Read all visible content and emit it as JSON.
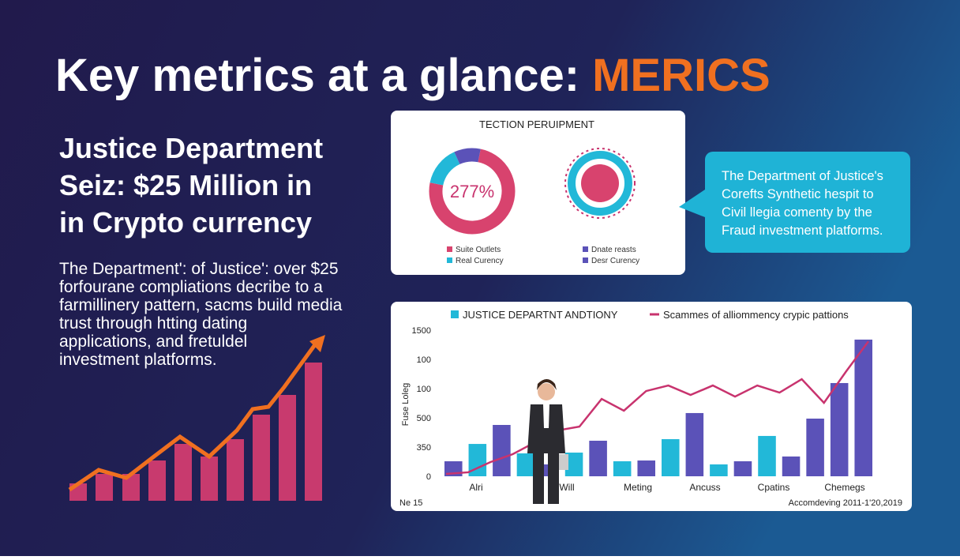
{
  "header": {
    "title": "Key metrics at a glance:",
    "title_accent": "MERICS"
  },
  "headline": {
    "lines": [
      "Justice Department",
      "Seiz: $25 Million in",
      "in Crypto currency"
    ]
  },
  "body": {
    "lines": [
      "The Department': of Justice': over $25",
      "forfourane compliations decribe to a",
      "farmillinery pattern, sacms build media",
      "trust through htting dating",
      "applications, and fretuldel",
      "investment platforms."
    ]
  },
  "callout": {
    "lines": [
      "The Department of Justice's",
      "Corefts Synthetic hespit to",
      "Civil llegia comenty by the",
      "Fraud investment platforms."
    ]
  },
  "chart_data": [
    {
      "type": "pie",
      "title": "TECTION PERUIPMENT",
      "center_label": "277%",
      "categories": [
        "Suite Outlets",
        "Real Curency",
        "Dnate reasts",
        "Desr Curency"
      ],
      "values": [
        75,
        15,
        10,
        null
      ],
      "colors": [
        "#d8436e",
        "#22b8d8",
        "#5b52b8",
        "#5b52b8"
      ]
    },
    {
      "type": "bar",
      "ylim": [
        0,
        1500
      ],
      "y_axis_title": "Fuse Loleg",
      "y_labels": [
        "1500",
        "100",
        "100",
        "500",
        "350",
        "0"
      ],
      "x_labels": [
        "Alri",
        "Will",
        "Meting",
        "Ancuss",
        "Cpatins",
        "Chemegs"
      ],
      "footnote_left": "Ne 15",
      "footnote_right": "Accomdeving 2011-1'20,2019",
      "series": [
        {
          "name": "JUSTICE DEPARTNT ANDTIONY",
          "color": "#22b8d8",
          "alt_color": "#5b52b8",
          "values": [
            154,
            332,
            527,
            235,
            122,
            243,
            365,
            154,
            162,
            381,
            649,
            122,
            154,
            414,
            203,
            592,
            957,
            1403
          ]
        },
        {
          "name": "Scammes of alliommency crypic pattions",
          "color": "#c8336e",
          "values": [
            24,
            41,
            146,
            227,
            348,
            470,
            510,
            794,
            673,
            875,
            932,
            835,
            932,
            818,
            932,
            859,
            997,
            754,
            1077,
            1385
          ]
        }
      ]
    }
  ]
}
